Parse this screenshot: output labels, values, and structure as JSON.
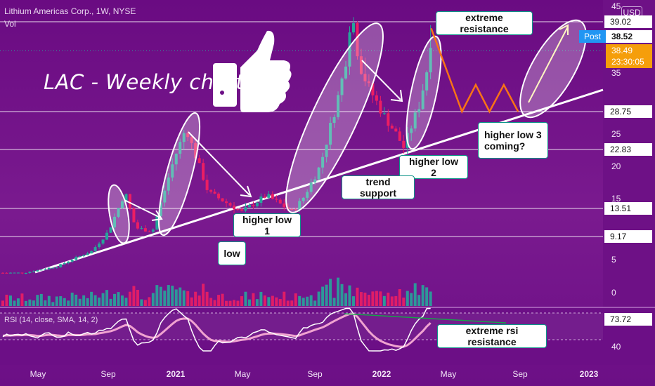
{
  "header": {
    "title": "Lithium Americas Corp., 1W, NYSE",
    "vol": "Vol",
    "currency": "USD"
  },
  "chart_title": "LAC - Weekly chart",
  "rsi_label": "RSI (14, close, SMA, 14, 2)",
  "price_badges": {
    "post_tag": "Post",
    "post_price": "38.52",
    "last_price": "38.49",
    "countdown": "23:30:05"
  },
  "colors": {
    "background": "#6c0f86",
    "up_candle": "#26a69a",
    "down_candle": "#ec1e63",
    "projection": "#f97316",
    "rsi_line": "#ffffff",
    "rsi_ma": "#f0a3d0"
  },
  "chart_data": {
    "type": "candlestick",
    "instrument": "Lithium Americas Corp.",
    "timeframe": "1W",
    "exchange": "NYSE",
    "y_axis_ticks": [
      45,
      39.02,
      35.0,
      28.75,
      25.0,
      22.83,
      20.0,
      15.0,
      13.51,
      9.17,
      5.0,
      0.0
    ],
    "horizontal_levels": [
      39.02,
      28.75,
      22.83,
      13.51,
      9.17
    ],
    "highlighted_levels": [
      39.02,
      28.75,
      22.83,
      13.51,
      9.17
    ],
    "x_axis_labels": [
      "May",
      "Sep",
      "2021",
      "May",
      "Sep",
      "2022",
      "May",
      "Sep",
      "2023"
    ],
    "price_path": [
      {
        "date": "2020-04",
        "price": 3.0
      },
      {
        "date": "2020-06",
        "price": 4.0
      },
      {
        "date": "2020-08",
        "price": 6.5
      },
      {
        "date": "2020-09",
        "price": 10.0
      },
      {
        "date": "2020-10",
        "price": 16.0
      },
      {
        "date": "2020-10-20",
        "price": 10.5
      },
      {
        "date": "2020-11-20",
        "price": 10.0
      },
      {
        "date": "2021-01-01",
        "price": 22.0
      },
      {
        "date": "2021-01-20",
        "price": 26.0
      },
      {
        "date": "2021-03-01",
        "price": 16.0
      },
      {
        "date": "2021-05-01",
        "price": 13.0
      },
      {
        "date": "2021-06-15",
        "price": 15.5
      },
      {
        "date": "2021-08-01",
        "price": 13.0
      },
      {
        "date": "2021-08-20",
        "price": 15.0
      },
      {
        "date": "2021-09-20",
        "price": 20.0
      },
      {
        "date": "2021-10-20",
        "price": 30.0
      },
      {
        "date": "2021-11-15",
        "price": 40.0
      },
      {
        "date": "2021-12-15",
        "price": 33.0
      },
      {
        "date": "2022-01-15",
        "price": 28.0
      },
      {
        "date": "2022-02-20",
        "price": 23.0
      },
      {
        "date": "2022-03-20",
        "price": 30.0
      },
      {
        "date": "2022-04-10",
        "price": 38.5
      }
    ],
    "projection_path": [
      {
        "date": "2022-04-10",
        "price": 38.5
      },
      {
        "date": "2022-06-05",
        "price": 28.75
      },
      {
        "date": "2022-06-30",
        "price": 33.0
      },
      {
        "date": "2022-07-25",
        "price": 28.75
      },
      {
        "date": "2022-08-20",
        "price": 33.0
      },
      {
        "date": "2022-09-15",
        "price": 28.75
      }
    ],
    "annotations": [
      "extreme resistance",
      "higher low 3\ncoming?",
      "higher low 2",
      "trend support",
      "higher low 1",
      "low",
      "extreme rsi resistance"
    ],
    "rsi": {
      "period": 14,
      "axis_labels": [
        73.72,
        40.0
      ],
      "levels": [
        70,
        30
      ]
    },
    "volume_axis_labels": []
  }
}
